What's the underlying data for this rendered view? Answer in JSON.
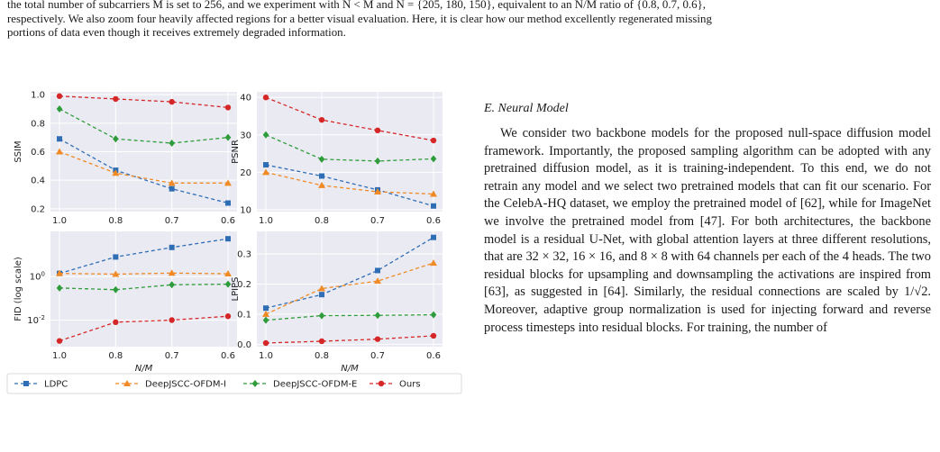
{
  "caption": {
    "line1": "the total number of subcarriers M is set to 256, and we experiment with N < M and N = {205, 180, 150}, equivalent to an N/M ratio of {0.8, 0.7, 0.6},",
    "line2": "respectively. We also zoom four heavily affected regions for a better visual evaluation. Here, it is clear how our method excellently regenerated missing",
    "line3": "portions of data even though it receives extremely degraded information."
  },
  "section": {
    "title": "E. Neural Model",
    "paragraph": "We consider two backbone models for the proposed null-space diffusion model framework. Importantly, the proposed sampling algorithm can be adopted with any pretrained diffusion model, as it is training-independent. To this end, we do not retrain any model and we select two pretrained models that can fit our scenario. For the CelebA-HQ dataset, we employ the pretrained model of [62], while for ImageNet we involve the pretrained model from [47]. For both architectures, the backbone model is a residual U-Net, with global attention layers at three different resolutions, that are 32 × 32, 16 × 16, and 8 × 8 with 64 channels per each of the 4 heads. The two residual blocks for upsampling and downsampling the activations are inspired from [63], as suggested in [64]. Similarly, the residual connections are scaled by 1/√2. Moreover, adaptive group normalization is used for injecting forward and reverse process timesteps into residual blocks. For training, the number of"
  },
  "legend": [
    "LDPC",
    "DeepJSCC-OFDM-I",
    "DeepJSCC-OFDM-E",
    "Ours"
  ],
  "colors": {
    "LDPC": "#2f6db5",
    "DeepJSCC-OFDM-I": "#f08a24",
    "DeepJSCC-OFDM-E": "#2e9c3a",
    "Ours": "#d62728"
  },
  "chart_data": [
    {
      "type": "line",
      "ylabel": "SSIM",
      "xlabel": "",
      "categories": [
        "1.0",
        "0.8",
        "0.7",
        "0.6"
      ],
      "ylim": [
        0.18,
        1.02
      ],
      "yticks": [
        "0.2",
        "0.4",
        "0.6",
        "0.8",
        "1.0"
      ],
      "ytickvals": [
        0.2,
        0.4,
        0.6,
        0.8,
        1.0
      ],
      "grid": true,
      "series": [
        {
          "name": "LDPC",
          "values": [
            0.69,
            0.47,
            0.34,
            0.24
          ]
        },
        {
          "name": "DeepJSCC-OFDM-I",
          "values": [
            0.6,
            0.45,
            0.38,
            0.38
          ]
        },
        {
          "name": "DeepJSCC-OFDM-E",
          "values": [
            0.9,
            0.69,
            0.66,
            0.7
          ]
        },
        {
          "name": "Ours",
          "values": [
            0.99,
            0.97,
            0.95,
            0.91
          ]
        }
      ]
    },
    {
      "type": "line",
      "ylabel": "PSNR",
      "xlabel": "",
      "categories": [
        "1.0",
        "0.8",
        "0.7",
        "0.6"
      ],
      "ylim": [
        9.5,
        41.5
      ],
      "yticks": [
        "10",
        "20",
        "30",
        "40"
      ],
      "ytickvals": [
        10,
        20,
        30,
        40
      ],
      "grid": true,
      "series": [
        {
          "name": "LDPC",
          "values": [
            22.0,
            19.0,
            15.3,
            11.0
          ]
        },
        {
          "name": "DeepJSCC-OFDM-I",
          "values": [
            20.0,
            16.5,
            14.8,
            14.2
          ]
        },
        {
          "name": "DeepJSCC-OFDM-E",
          "values": [
            30.0,
            23.5,
            23.0,
            23.6
          ]
        },
        {
          "name": "Ours",
          "values": [
            40.0,
            34.0,
            31.2,
            28.5
          ]
        }
      ]
    },
    {
      "type": "line",
      "ylabel": "FID (log scale)",
      "xlabel": "N/M",
      "log": true,
      "categories": [
        "1.0",
        "0.8",
        "0.7",
        "0.6"
      ],
      "ylim": [
        0.0006,
        120
      ],
      "yticks": [
        "10^0",
        "10^-2"
      ],
      "ytickvals": [
        1,
        0.01
      ],
      "grid": true,
      "series": [
        {
          "name": "LDPC",
          "values": [
            1.4,
            8.0,
            22.0,
            55.0
          ]
        },
        {
          "name": "DeepJSCC-OFDM-I",
          "values": [
            1.4,
            1.3,
            1.45,
            1.35
          ]
        },
        {
          "name": "DeepJSCC-OFDM-E",
          "values": [
            0.3,
            0.25,
            0.42,
            0.45
          ]
        },
        {
          "name": "Ours",
          "values": [
            0.0011,
            0.008,
            0.01,
            0.015
          ]
        }
      ]
    },
    {
      "type": "line",
      "ylabel": "LPIPS",
      "xlabel": "N/M",
      "categories": [
        "1.0",
        "0.8",
        "0.7",
        "0.6"
      ],
      "ylim": [
        -0.008,
        0.375
      ],
      "yticks": [
        "0.0",
        "0.1",
        "0.2",
        "0.3"
      ],
      "ytickvals": [
        0,
        0.1,
        0.2,
        0.3
      ],
      "grid": true,
      "series": [
        {
          "name": "LDPC",
          "values": [
            0.12,
            0.165,
            0.245,
            0.355
          ]
        },
        {
          "name": "DeepJSCC-OFDM-I",
          "values": [
            0.1,
            0.185,
            0.21,
            0.27
          ]
        },
        {
          "name": "DeepJSCC-OFDM-E",
          "values": [
            0.08,
            0.095,
            0.096,
            0.098
          ]
        },
        {
          "name": "Ours",
          "values": [
            0.004,
            0.01,
            0.017,
            0.028
          ]
        }
      ]
    }
  ]
}
